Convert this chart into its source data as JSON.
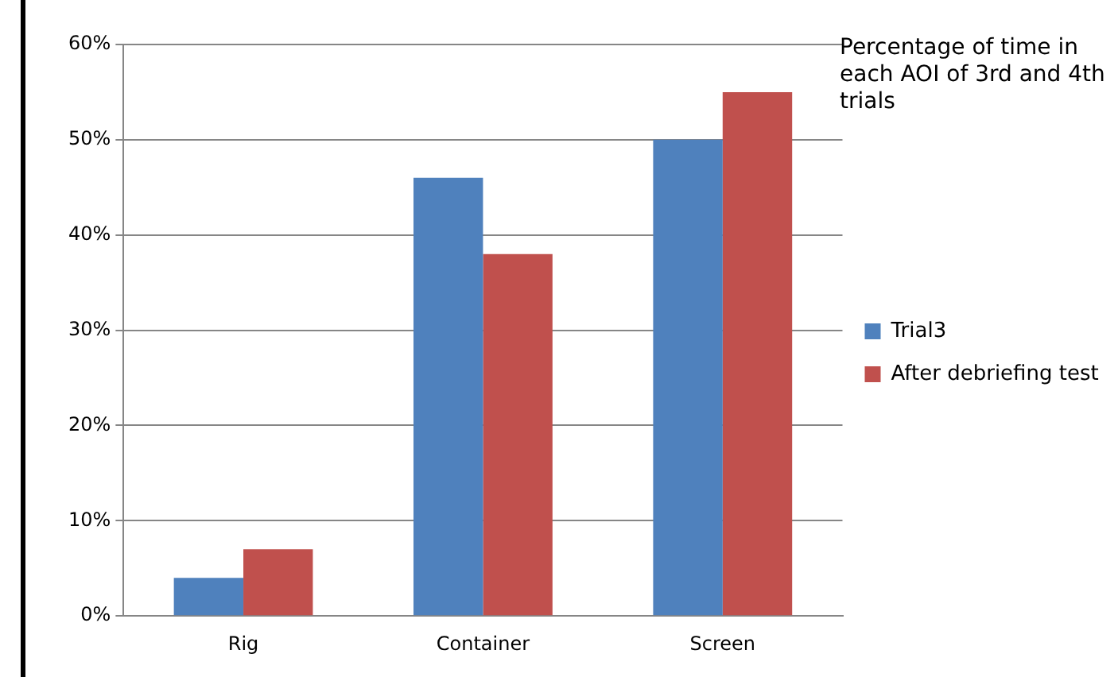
{
  "chart_data": {
    "type": "bar",
    "title": "Percentage of time in each AOI of 3rd and 4th trials",
    "categories": [
      "Rig",
      "Container",
      "Screen"
    ],
    "series": [
      {
        "name": "Trial3",
        "color": "#4f81bd",
        "values": [
          4,
          46,
          50
        ]
      },
      {
        "name": "After debriefing test",
        "color": "#c0504d",
        "values": [
          7,
          38,
          55
        ]
      }
    ],
    "ylim": [
      0,
      60
    ],
    "yticks": [
      {
        "value": 0,
        "label": "0%"
      },
      {
        "value": 10,
        "label": "10%"
      },
      {
        "value": 20,
        "label": "20%"
      },
      {
        "value": 30,
        "label": "30%"
      },
      {
        "value": 40,
        "label": "40%"
      },
      {
        "value": 50,
        "label": "50%"
      },
      {
        "value": 60,
        "label": "60%"
      }
    ],
    "grid": "y",
    "legend": "right"
  }
}
